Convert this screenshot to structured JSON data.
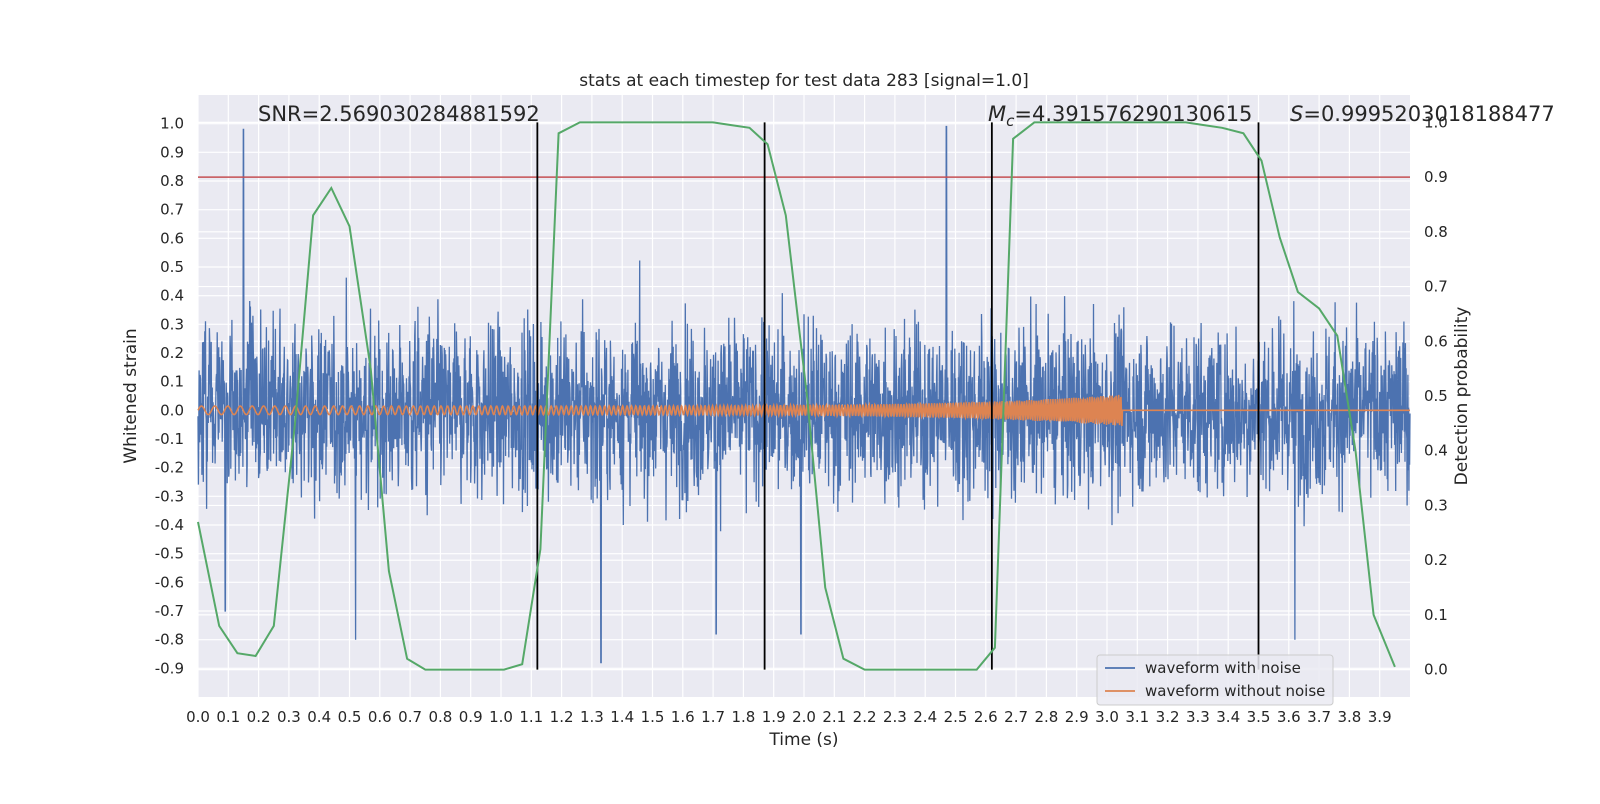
{
  "chart_data": {
    "type": "line",
    "title": "stats at each timestep for test data 283 [signal=1.0]",
    "xlabel": "Time (s)",
    "ylabel": "Whitened strain",
    "y2label": "Detection probability",
    "xlim": [
      0.0,
      4.0
    ],
    "ylim": [
      -1.0,
      1.1
    ],
    "y2lim": [
      -0.05,
      1.05
    ],
    "x_ticks": [
      "0.0",
      "0.1",
      "0.2",
      "0.3",
      "0.4",
      "0.5",
      "0.6",
      "0.7",
      "0.8",
      "0.9",
      "1.0",
      "1.1",
      "1.2",
      "1.3",
      "1.4",
      "1.5",
      "1.6",
      "1.7",
      "1.8",
      "1.9",
      "2.0",
      "2.1",
      "2.2",
      "2.3",
      "2.4",
      "2.5",
      "2.6",
      "2.7",
      "2.8",
      "2.9",
      "3.0",
      "3.1",
      "3.2",
      "3.3",
      "3.4",
      "3.5",
      "3.6",
      "3.7",
      "3.8",
      "3.9"
    ],
    "y_ticks": [
      "1.0",
      "0.9",
      "0.8",
      "0.7",
      "0.6",
      "0.5",
      "0.4",
      "0.3",
      "0.2",
      "0.1",
      "0.0",
      "-0.1",
      "-0.2",
      "-0.3",
      "-0.4",
      "-0.5",
      "-0.6",
      "-0.7",
      "-0.8",
      "-0.9"
    ],
    "y2_ticks": [
      "1.0",
      "0.9",
      "0.8",
      "0.7",
      "0.6",
      "0.5",
      "0.4",
      "0.3",
      "0.2",
      "0.1",
      "0.0"
    ],
    "grid": true,
    "legend_position": "bottom-right",
    "annotations": {
      "snr": "SNR=2.569030284881592",
      "mc_symbol": "M",
      "mc_subscript": "c",
      "mc_value": "=4.391576290130615",
      "s_symbol": "S",
      "s_value": "=0.9995203018188477"
    },
    "series": [
      {
        "name": "waveform with noise",
        "color": "#4c72b0",
        "envelope_abs": 0.5,
        "peaks": [
          {
            "t": 0.15,
            "y": 0.98
          },
          {
            "t": 2.47,
            "y": 0.99
          },
          {
            "t": 1.33,
            "y": -0.88
          },
          {
            "t": 0.52,
            "y": -0.8
          },
          {
            "t": 1.71,
            "y": -0.78
          },
          {
            "t": 1.99,
            "y": -0.78
          },
          {
            "t": 3.62,
            "y": -0.8
          },
          {
            "t": 0.09,
            "y": -0.7
          }
        ]
      },
      {
        "name": "waveform without noise",
        "color": "#dd8452",
        "chirp_end_time": 3.05,
        "start_amplitude": 0.015,
        "end_amplitude": 0.055
      },
      {
        "name": "detection probability",
        "axis": "right",
        "color": "#55a868",
        "x": [
          0.0,
          0.07,
          0.13,
          0.19,
          0.25,
          0.32,
          0.38,
          0.44,
          0.5,
          0.57,
          0.63,
          0.69,
          0.75,
          0.82,
          0.88,
          0.94,
          1.01,
          1.07,
          1.13,
          1.19,
          1.26,
          1.32,
          1.38,
          1.44,
          1.51,
          1.57,
          1.63,
          1.7,
          1.76,
          1.82,
          1.88,
          1.94,
          2.01,
          2.07,
          2.13,
          2.2,
          2.26,
          2.32,
          2.38,
          2.45,
          2.51,
          2.57,
          2.63,
          2.69,
          2.76,
          2.82,
          2.88,
          2.95,
          3.01,
          3.07,
          3.13,
          3.2,
          3.26,
          3.32,
          3.38,
          3.45,
          3.51,
          3.57,
          3.63,
          3.7,
          3.76,
          3.82,
          3.88,
          3.95
        ],
        "y": [
          0.27,
          0.08,
          0.03,
          0.025,
          0.08,
          0.45,
          0.83,
          0.88,
          0.81,
          0.55,
          0.18,
          0.02,
          0.0,
          0.0,
          0.0,
          0.0,
          0.0,
          0.01,
          0.22,
          0.98,
          1.0,
          1.0,
          1.0,
          1.0,
          1.0,
          1.0,
          1.0,
          1.0,
          0.995,
          0.99,
          0.96,
          0.83,
          0.5,
          0.15,
          0.02,
          0.0,
          0.0,
          0.0,
          0.0,
          0.0,
          0.0,
          0.0,
          0.04,
          0.97,
          1.0,
          1.0,
          1.0,
          1.0,
          1.0,
          1.0,
          1.0,
          1.0,
          1.0,
          0.995,
          0.99,
          0.98,
          0.93,
          0.79,
          0.69,
          0.66,
          0.61,
          0.4,
          0.1,
          0.005
        ]
      }
    ],
    "reference_line": {
      "axis": "right",
      "y": 0.9,
      "color": "#c44e52"
    },
    "vertical_lines_x": [
      1.12,
      1.87,
      2.62,
      3.5
    ],
    "vertical_line_color": "#000000"
  }
}
